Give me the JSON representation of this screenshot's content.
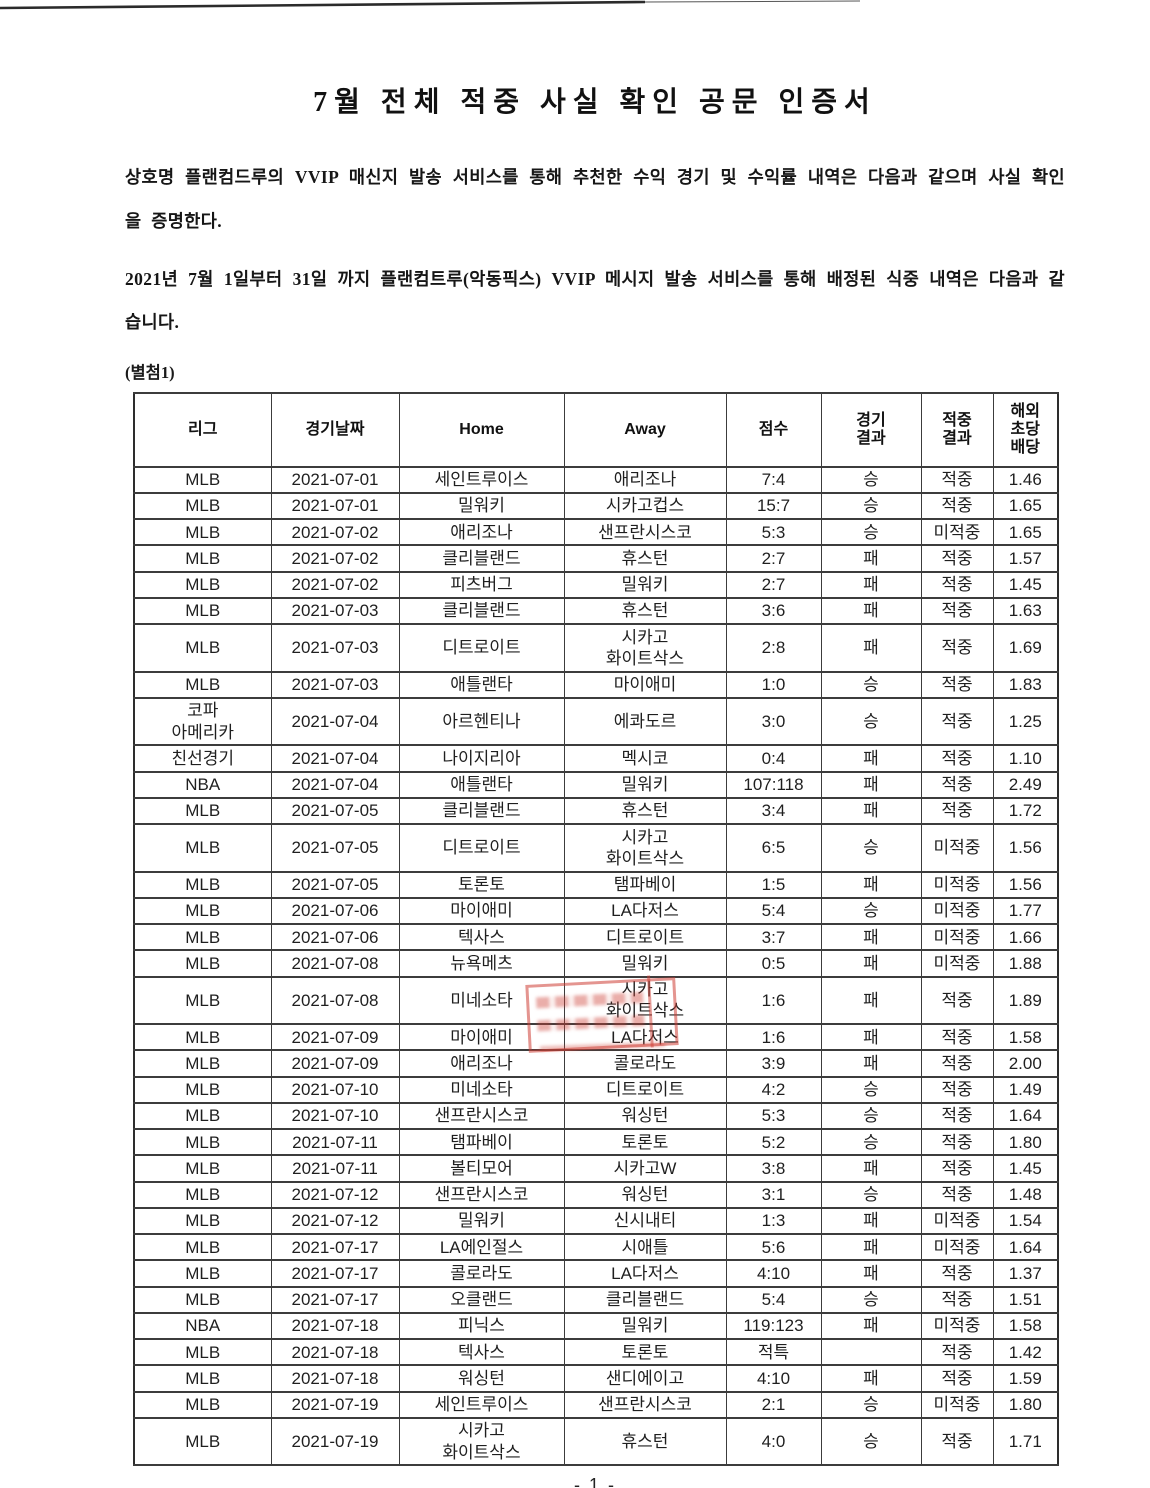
{
  "doc": {
    "title": "7월 전체 적중 사실 확인 공문 인증서",
    "paragraph1": "상호명 플랜컴드루의 VVIP 매신지 발송 서비스를 통해 추천한 수익 경기 및 수익률 내역은 다음과 같으며 사실 확인을 증명한다.",
    "paragraph2": "2021년 7월 1일부터 31일 까지 플랜컴트루(악동픽스) VVIP 메시지 발송 서비스를 통해 배정된 식중 내역은 다음과 같습니다.",
    "attachment_label": "(별첨1)",
    "page_number": "- 1 -"
  },
  "colors": {
    "hit": "#e25c66",
    "miss": "#3da2e0",
    "stamp": "#cd3e34"
  },
  "table": {
    "headers": [
      "리그",
      "경기날짜",
      "Home",
      "Away",
      "점수",
      "경기\n결과",
      "적중\n결과",
      "해외\n초당\n배당"
    ],
    "hit_label": "적중",
    "miss_label": "미적중",
    "rows": [
      [
        "MLB",
        "2021-07-01",
        "세인트루이스",
        "애리조나",
        "7:4",
        "승",
        "적중",
        "1.46"
      ],
      [
        "MLB",
        "2021-07-01",
        "밀워키",
        "시카고컵스",
        "15:7",
        "승",
        "적중",
        "1.65"
      ],
      [
        "MLB",
        "2021-07-02",
        "애리조나",
        "샌프란시스코",
        "5:3",
        "승",
        "미적중",
        "1.65"
      ],
      [
        "MLB",
        "2021-07-02",
        "클리블랜드",
        "휴스턴",
        "2:7",
        "패",
        "적중",
        "1.57"
      ],
      [
        "MLB",
        "2021-07-02",
        "피츠버그",
        "밀워키",
        "2:7",
        "패",
        "적중",
        "1.45"
      ],
      [
        "MLB",
        "2021-07-03",
        "클리블랜드",
        "휴스턴",
        "3:6",
        "패",
        "적중",
        "1.63"
      ],
      [
        "MLB",
        "2021-07-03",
        "디트로이트",
        "시카고\n화이트삭스",
        "2:8",
        "패",
        "적중",
        "1.69"
      ],
      [
        "MLB",
        "2021-07-03",
        "애틀랜타",
        "마이애미",
        "1:0",
        "승",
        "적중",
        "1.83"
      ],
      [
        "코파\n아메리카",
        "2021-07-04",
        "아르헨티나",
        "에콰도르",
        "3:0",
        "승",
        "적중",
        "1.25"
      ],
      [
        "친선경기",
        "2021-07-04",
        "나이지리아",
        "멕시코",
        "0:4",
        "패",
        "적중",
        "1.10"
      ],
      [
        "NBA",
        "2021-07-04",
        "애틀랜타",
        "밀워키",
        "107:118",
        "패",
        "적중",
        "2.49"
      ],
      [
        "MLB",
        "2021-07-05",
        "클리블랜드",
        "휴스턴",
        "3:4",
        "패",
        "적중",
        "1.72"
      ],
      [
        "MLB",
        "2021-07-05",
        "디트로이트",
        "시카고\n화이트삭스",
        "6:5",
        "승",
        "미적중",
        "1.56"
      ],
      [
        "MLB",
        "2021-07-05",
        "토론토",
        "탬파베이",
        "1:5",
        "패",
        "미적중",
        "1.56"
      ],
      [
        "MLB",
        "2021-07-06",
        "마이애미",
        "LA다저스",
        "5:4",
        "승",
        "미적중",
        "1.77"
      ],
      [
        "MLB",
        "2021-07-06",
        "텍사스",
        "디트로이트",
        "3:7",
        "패",
        "미적중",
        "1.66"
      ],
      [
        "MLB",
        "2021-07-08",
        "뉴욕메츠",
        "밀워키",
        "0:5",
        "패",
        "미적중",
        "1.88"
      ],
      [
        "MLB",
        "2021-07-08",
        "미네소타",
        "시카고\n화이트삭스",
        "1:6",
        "패",
        "적중",
        "1.89"
      ],
      [
        "MLB",
        "2021-07-09",
        "마이애미",
        "LA다저스",
        "1:6",
        "패",
        "적중",
        "1.58"
      ],
      [
        "MLB",
        "2021-07-09",
        "애리조나",
        "콜로라도",
        "3:9",
        "패",
        "적중",
        "2.00"
      ],
      [
        "MLB",
        "2021-07-10",
        "미네소타",
        "디트로이트",
        "4:2",
        "승",
        "적중",
        "1.49"
      ],
      [
        "MLB",
        "2021-07-10",
        "샌프란시스코",
        "워싱턴",
        "5:3",
        "승",
        "적중",
        "1.64"
      ],
      [
        "MLB",
        "2021-07-11",
        "탬파베이",
        "토론토",
        "5:2",
        "승",
        "적중",
        "1.80"
      ],
      [
        "MLB",
        "2021-07-11",
        "볼티모어",
        "시카고W",
        "3:8",
        "패",
        "적중",
        "1.45"
      ],
      [
        "MLB",
        "2021-07-12",
        "샌프란시스코",
        "워싱턴",
        "3:1",
        "승",
        "적중",
        "1.48"
      ],
      [
        "MLB",
        "2021-07-12",
        "밀워키",
        "신시내티",
        "1:3",
        "패",
        "미적중",
        "1.54"
      ],
      [
        "MLB",
        "2021-07-17",
        "LA에인절스",
        "시애틀",
        "5:6",
        "패",
        "미적중",
        "1.64"
      ],
      [
        "MLB",
        "2021-07-17",
        "콜로라도",
        "LA다저스",
        "4:10",
        "패",
        "적중",
        "1.37"
      ],
      [
        "MLB",
        "2021-07-17",
        "오클랜드",
        "클리블랜드",
        "5:4",
        "승",
        "적중",
        "1.51"
      ],
      [
        "NBA",
        "2021-07-18",
        "피닉스",
        "밀워키",
        "119:123",
        "패",
        "미적중",
        "1.58"
      ],
      [
        "MLB",
        "2021-07-18",
        "텍사스",
        "토론토",
        "적특",
        "",
        "적중",
        "1.42"
      ],
      [
        "MLB",
        "2021-07-18",
        "워싱턴",
        "샌디에이고",
        "4:10",
        "패",
        "적중",
        "1.59"
      ],
      [
        "MLB",
        "2021-07-19",
        "세인트루이스",
        "샌프란시스코",
        "2:1",
        "승",
        "미적중",
        "1.80"
      ],
      [
        "MLB",
        "2021-07-19",
        "시카고\n화이트삭스",
        "휴스턴",
        "4:0",
        "승",
        "적중",
        "1.71"
      ]
    ]
  }
}
